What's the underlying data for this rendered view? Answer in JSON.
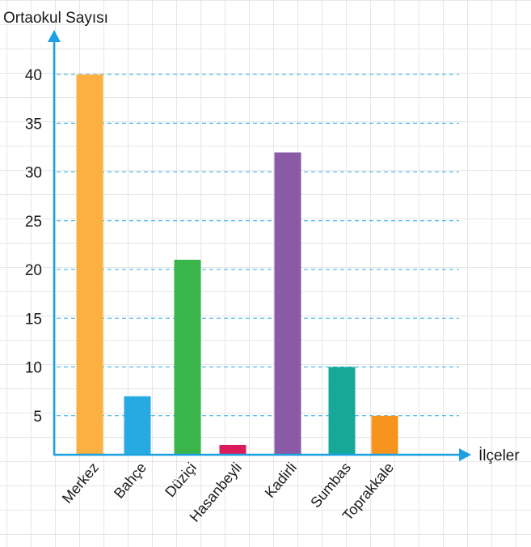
{
  "chart_data": {
    "type": "bar",
    "title": "",
    "ylabel": "Ortaokul Sayısı",
    "xlabel": "İlçeler",
    "categories": [
      "Merkez",
      "Bahçe",
      "Düziçi",
      "Hasanbeyli",
      "Kadirli",
      "Sumbas",
      "Toprakkale"
    ],
    "values": [
      40,
      7,
      21,
      2,
      32,
      10,
      5
    ],
    "colors": [
      "#fbb040",
      "#27aae1",
      "#39b54a",
      "#da1c5c",
      "#8a5aa6",
      "#16a99a",
      "#f7941d"
    ],
    "yticks": [
      5,
      10,
      15,
      20,
      25,
      30,
      35,
      40
    ],
    "ylim": [
      1,
      40
    ],
    "grid": "horizontal dashed",
    "axis_color": "#1ba1e2",
    "gridline_color": "#29abe2"
  }
}
